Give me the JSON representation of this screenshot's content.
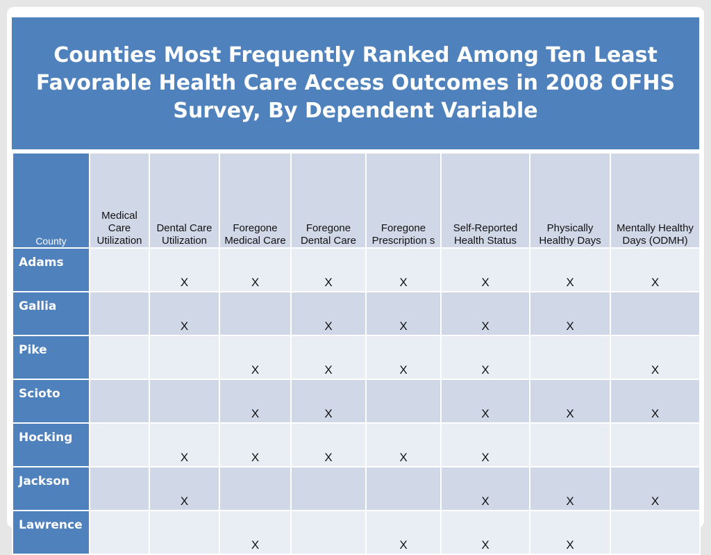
{
  "title": "Counties Most Frequently Ranked Among Ten Least Favorable Health Care Access Outcomes in 2008 OFHS Survey, By Dependent Variable",
  "table": {
    "county_header": "County",
    "columns": [
      "Medical Care Utilization",
      "Dental Care Utilization",
      "Foregone Medical Care",
      "Foregone Dental Care",
      "Foregone Prescription s",
      "Self-Reported Health Status",
      "Physically Healthy Days",
      "Mentally Healthy Days (ODMH)"
    ],
    "rows": [
      {
        "county": "Adams",
        "marks": [
          "",
          "X",
          "X",
          "X",
          "X",
          "X",
          "X",
          "X"
        ]
      },
      {
        "county": "Gallia",
        "marks": [
          "",
          "X",
          "",
          "X",
          "X",
          "X",
          "X",
          ""
        ]
      },
      {
        "county": "Pike",
        "marks": [
          "",
          "",
          "X",
          "X",
          "X",
          "X",
          "",
          "X"
        ]
      },
      {
        "county": "Scioto",
        "marks": [
          "",
          "",
          "X",
          "X",
          "",
          "X",
          "X",
          "X"
        ]
      },
      {
        "county": "Hocking",
        "marks": [
          "",
          "X",
          "X",
          "X",
          "X",
          "X",
          "",
          ""
        ]
      },
      {
        "county": "Jackson",
        "marks": [
          "",
          "X",
          "",
          "",
          "",
          "X",
          "X",
          "X"
        ]
      },
      {
        "county": "Lawrence",
        "marks": [
          "",
          "",
          "X",
          "",
          "X",
          "X",
          "X",
          ""
        ]
      }
    ]
  },
  "colors": {
    "header_blue": "#4f81bd",
    "light_band": "#e9edf4",
    "dark_band": "#d0d8e8"
  }
}
